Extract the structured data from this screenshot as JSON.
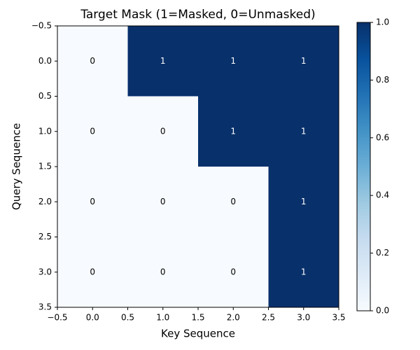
{
  "chart_data": {
    "type": "heatmap",
    "title": "Target Mask (1=Masked, 0=Unmasked)",
    "xlabel": "Key Sequence",
    "ylabel": "Query Sequence",
    "z": [
      [
        0,
        1,
        1,
        1
      ],
      [
        0,
        0,
        1,
        1
      ],
      [
        0,
        0,
        0,
        1
      ],
      [
        0,
        0,
        0,
        1
      ]
    ],
    "xlim": [
      -0.5,
      3.5
    ],
    "ylim": [
      3.5,
      -0.5
    ],
    "xticks": [
      {
        "value": -0.5,
        "label": "−0.5"
      },
      {
        "value": 0,
        "label": "0.0"
      },
      0.5,
      {
        "value": 1,
        "label": "1.0"
      },
      1.5,
      {
        "value": 2,
        "label": "2.0"
      },
      2.5,
      {
        "value": 3,
        "label": "3.0"
      },
      3.5
    ],
    "yticks": [
      {
        "value": -0.5,
        "label": "−0.5"
      },
      {
        "value": 0,
        "label": "0.0"
      },
      0.5,
      {
        "value": 1,
        "label": "1.0"
      },
      1.5,
      {
        "value": 2,
        "label": "2.0"
      },
      2.5,
      {
        "value": 3,
        "label": "3.0"
      },
      3.5
    ],
    "clim": [
      0,
      1
    ],
    "cticks": [
      {
        "value": 0,
        "label": "0.0"
      },
      0.2,
      0.4,
      0.6,
      0.8,
      {
        "value": 1,
        "label": "1.0"
      }
    ],
    "colorscale": [
      "#f7fbff",
      "#deebf7",
      "#c6dbef",
      "#9ecae1",
      "#6baed6",
      "#4292c6",
      "#2171b5",
      "#08519c",
      "#08306b"
    ]
  }
}
